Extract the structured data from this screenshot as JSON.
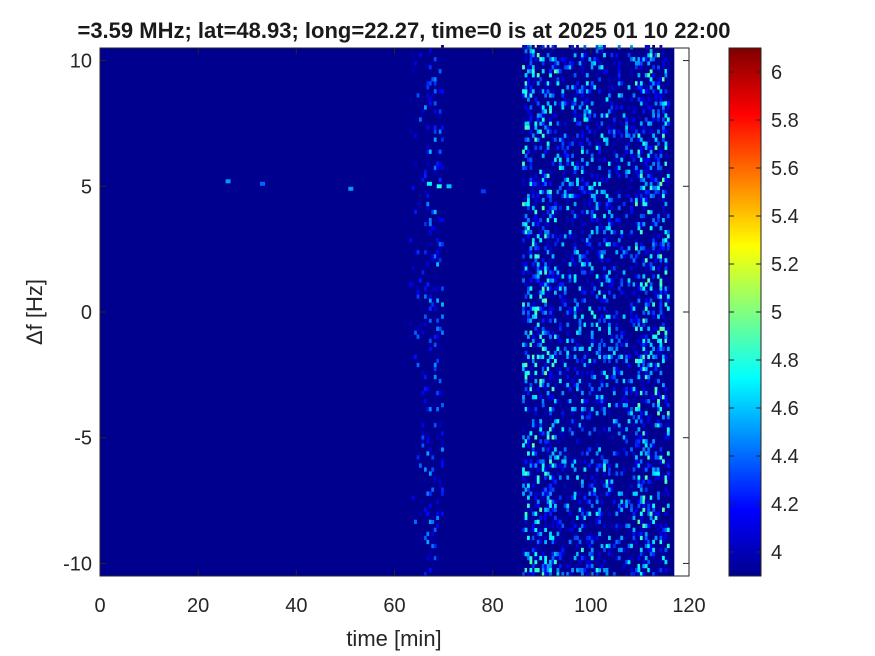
{
  "chart_data": {
    "type": "heatmap",
    "title": "=3.59 MHz;  lat=48.93; long=22.27, time=0 is at 2025 01 10 22:00",
    "xlabel": "time [min]",
    "ylabel": "Δf [Hz]",
    "xlim": [
      0,
      120
    ],
    "ylim": [
      -10.5,
      10.5
    ],
    "xticks": [
      "0",
      "20",
      "40",
      "60",
      "80",
      "100",
      "120"
    ],
    "yticks": [
      "-10",
      "-5",
      "0",
      "5",
      "10"
    ],
    "colorbar": {
      "range": [
        3.9,
        6.1
      ],
      "ticks": [
        "4",
        "4.2",
        "4.4",
        "4.6",
        "4.8",
        "5",
        "5.2",
        "5.4",
        "5.6",
        "5.8",
        "6"
      ],
      "colormap": "jet"
    },
    "background_value": 3.95,
    "data_end_min": 117,
    "active_bands": [
      {
        "start_min": 63,
        "end_min": 66,
        "intensity": 0.15
      },
      {
        "start_min": 66,
        "end_min": 70,
        "intensity": 0.35
      },
      {
        "start_min": 86,
        "end_min": 93,
        "intensity": 0.75
      },
      {
        "start_min": 93,
        "end_min": 98,
        "intensity": 0.5
      },
      {
        "start_min": 98,
        "end_min": 104,
        "intensity": 0.6
      },
      {
        "start_min": 104,
        "end_min": 109,
        "intensity": 0.45
      },
      {
        "start_min": 109,
        "end_min": 116,
        "intensity": 0.75
      }
    ],
    "spots": [
      {
        "t": 26,
        "df": 5.2,
        "value": 4.5
      },
      {
        "t": 33,
        "df": 5.1,
        "value": 4.4
      },
      {
        "t": 51,
        "df": 4.9,
        "value": 4.5
      },
      {
        "t": 67,
        "df": 5.1,
        "value": 4.7
      },
      {
        "t": 69,
        "df": 5.0,
        "value": 4.8
      },
      {
        "t": 71,
        "df": 5.0,
        "value": 4.6
      },
      {
        "t": 78,
        "df": 4.8,
        "value": 4.3
      }
    ]
  }
}
